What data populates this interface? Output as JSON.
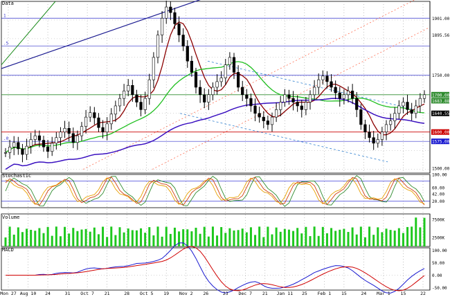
{
  "panes": {
    "price": {
      "label": "Data"
    },
    "stochastic": {
      "label": "Stochastic"
    },
    "volume": {
      "label": "Volume"
    },
    "macd": {
      "label": "MACD"
    }
  },
  "fib_labels": {
    "top": "1",
    "mid": ".5",
    "low": ".0"
  },
  "price_axis": {
    "ticks": [
      "1901.00",
      "1895.56",
      "1750.00",
      "1700.00",
      "1683.88",
      "1640.55",
      "1600.00",
      "1575.00",
      "1500.00"
    ],
    "highlight_colors": {
      "1683.88": "#2e8b2e",
      "1600.00": "#cc0000",
      "1575.00": "#1a1ad0",
      "1640.55": "#000000",
      "1700.00": "#2e8b2e"
    }
  },
  "stoch_axis": {
    "ticks": [
      "100.00",
      "60.00",
      "42.00",
      "20.00"
    ]
  },
  "volume_axis": {
    "ticks": [
      "7500K",
      "2500K"
    ]
  },
  "macd_axis": {
    "ticks": [
      "100.00",
      "50.00",
      "0.00",
      "-50.00"
    ]
  },
  "x_axis": {
    "labels": [
      "Mon 27",
      "Aug 10",
      "24",
      "31",
      "Oct 7",
      "21",
      "28",
      "Oct 5",
      "19",
      "Nov 2",
      "26",
      "23",
      "Dec 7",
      "21",
      "Jan 11",
      "25",
      "Feb 1",
      "15",
      "24",
      "Mar 1",
      "15",
      "22"
    ]
  },
  "colors": {
    "candle": "#000000",
    "ma_fast": "#8b0000",
    "ma_mid": "#1fbf1f",
    "ma_slow": "#3a10c0",
    "support": "#cc0000",
    "resistance": "#2e8b2e",
    "fib": "#3333cc",
    "stoch_k": "#2e8b2e",
    "stoch_d": "#d04010",
    "stoch_s": "#e8a000",
    "volume": "#1ec81e",
    "macd": "#1a1ad0",
    "signal": "#d00000"
  },
  "chart_data": {
    "type": "candlestick",
    "series": [
      {
        "name": "Data",
        "values": [
          1545,
          1560,
          1572,
          1555,
          1540,
          1562,
          1580,
          1590,
          1578,
          1560,
          1548,
          1570,
          1585,
          1600,
          1610,
          1596,
          1572,
          1590,
          1615,
          1640,
          1652,
          1638,
          1612,
          1600,
          1622,
          1648,
          1670,
          1690,
          1710,
          1725,
          1700,
          1680,
          1660,
          1690,
          1740,
          1800,
          1860,
          1905,
          1935,
          1920,
          1890,
          1860,
          1830,
          1790,
          1760,
          1720,
          1700,
          1680,
          1700,
          1720,
          1735,
          1745,
          1780,
          1800,
          1760,
          1720,
          1700,
          1690,
          1670,
          1650,
          1640,
          1630,
          1620,
          1640,
          1660,
          1680,
          1700,
          1690,
          1680,
          1670,
          1660,
          1680,
          1700,
          1720,
          1740,
          1750,
          1735,
          1720,
          1705,
          1690,
          1700,
          1710,
          1690,
          1660,
          1620,
          1600,
          1585,
          1570,
          1580,
          1600,
          1620,
          1630,
          1650,
          1670,
          1680,
          1660,
          1650,
          1670,
          1690,
          1700
        ]
      }
    ]
  }
}
